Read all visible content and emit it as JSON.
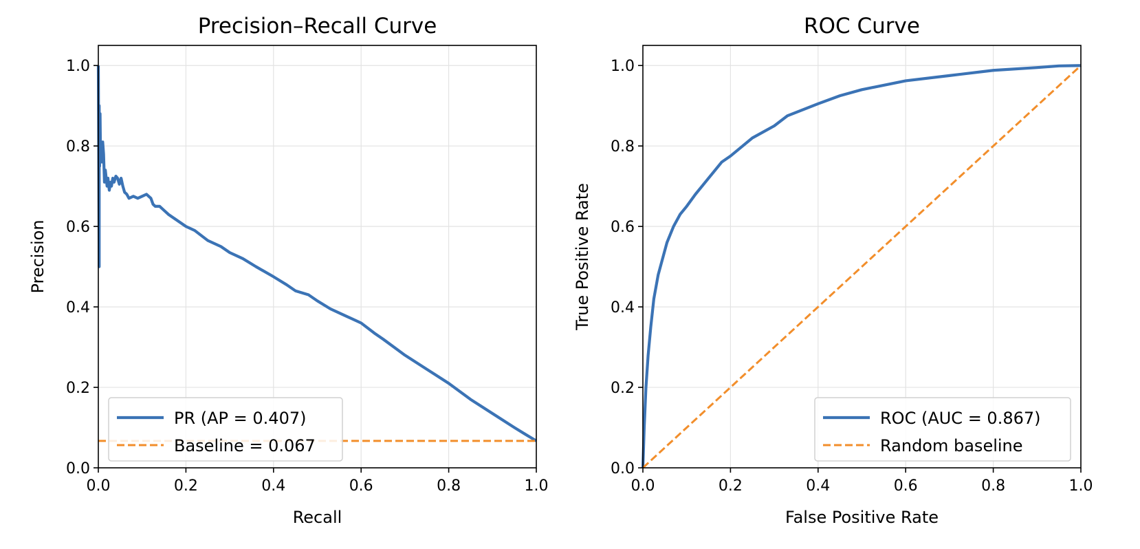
{
  "colors": {
    "curve": "#3b73b5",
    "baseline": "#f28e2b"
  },
  "chart_data": [
    {
      "type": "line",
      "title": "Precision–Recall Curve",
      "xlabel": "Recall",
      "ylabel": "Precision",
      "xlim": [
        0,
        1
      ],
      "ylim": [
        0,
        1.05
      ],
      "xticks": [
        "0.0",
        "0.2",
        "0.4",
        "0.6",
        "0.8",
        "1.0"
      ],
      "yticks": [
        "0.0",
        "0.2",
        "0.4",
        "0.6",
        "0.8",
        "1.0"
      ],
      "grid": true,
      "legend_position": "lower-left",
      "series": [
        {
          "name": "PR (AP = 0.407)",
          "style": "solid",
          "color": "#3b73b5",
          "x": [
            0.0,
            0.002,
            0.002,
            0.003,
            0.004,
            0.005,
            0.006,
            0.008,
            0.01,
            0.012,
            0.014,
            0.016,
            0.018,
            0.02,
            0.022,
            0.025,
            0.028,
            0.03,
            0.033,
            0.036,
            0.04,
            0.044,
            0.048,
            0.052,
            0.056,
            0.06,
            0.065,
            0.07,
            0.08,
            0.09,
            0.1,
            0.11,
            0.115,
            0.12,
            0.125,
            0.13,
            0.14,
            0.15,
            0.16,
            0.18,
            0.2,
            0.22,
            0.25,
            0.28,
            0.3,
            0.33,
            0.36,
            0.4,
            0.43,
            0.45,
            0.48,
            0.5,
            0.53,
            0.56,
            0.6,
            0.63,
            0.65,
            0.7,
            0.75,
            0.8,
            0.85,
            0.9,
            0.95,
            0.98,
            1.0
          ],
          "y": [
            1.0,
            0.5,
            0.9,
            0.75,
            0.88,
            0.78,
            0.8,
            0.76,
            0.81,
            0.78,
            0.71,
            0.74,
            0.72,
            0.7,
            0.72,
            0.69,
            0.71,
            0.7,
            0.72,
            0.71,
            0.725,
            0.72,
            0.705,
            0.72,
            0.7,
            0.685,
            0.68,
            0.67,
            0.675,
            0.67,
            0.675,
            0.68,
            0.675,
            0.67,
            0.655,
            0.65,
            0.65,
            0.64,
            0.63,
            0.615,
            0.6,
            0.59,
            0.565,
            0.55,
            0.535,
            0.52,
            0.5,
            0.475,
            0.455,
            0.44,
            0.43,
            0.415,
            0.395,
            0.38,
            0.36,
            0.335,
            0.32,
            0.28,
            0.245,
            0.21,
            0.17,
            0.135,
            0.1,
            0.08,
            0.067
          ]
        },
        {
          "name": "Baseline = 0.067",
          "style": "dashed",
          "color": "#f28e2b",
          "x": [
            0,
            1
          ],
          "y": [
            0.067,
            0.067
          ]
        }
      ]
    },
    {
      "type": "line",
      "title": "ROC Curve",
      "xlabel": "False Positive Rate",
      "ylabel": "True Positive Rate",
      "xlim": [
        0,
        1
      ],
      "ylim": [
        0,
        1.05
      ],
      "xticks": [
        "0.0",
        "0.2",
        "0.4",
        "0.6",
        "0.8",
        "1.0"
      ],
      "yticks": [
        "0.0",
        "0.2",
        "0.4",
        "0.6",
        "0.8",
        "1.0"
      ],
      "grid": true,
      "legend_position": "lower-right",
      "series": [
        {
          "name": "ROC (AUC = 0.867)",
          "style": "solid",
          "color": "#3b73b5",
          "x": [
            0.0,
            0.003,
            0.007,
            0.012,
            0.018,
            0.025,
            0.035,
            0.045,
            0.055,
            0.07,
            0.085,
            0.1,
            0.12,
            0.15,
            0.18,
            0.2,
            0.25,
            0.3,
            0.33,
            0.4,
            0.45,
            0.5,
            0.6,
            0.7,
            0.8,
            0.9,
            0.95,
            1.0
          ],
          "y": [
            0.0,
            0.1,
            0.2,
            0.28,
            0.35,
            0.42,
            0.48,
            0.52,
            0.56,
            0.6,
            0.63,
            0.65,
            0.68,
            0.72,
            0.76,
            0.775,
            0.82,
            0.85,
            0.875,
            0.905,
            0.925,
            0.94,
            0.962,
            0.975,
            0.988,
            0.995,
            0.999,
            1.0
          ]
        },
        {
          "name": "Random baseline",
          "style": "dashed",
          "color": "#f28e2b",
          "x": [
            0,
            1
          ],
          "y": [
            0,
            1
          ]
        }
      ]
    }
  ]
}
